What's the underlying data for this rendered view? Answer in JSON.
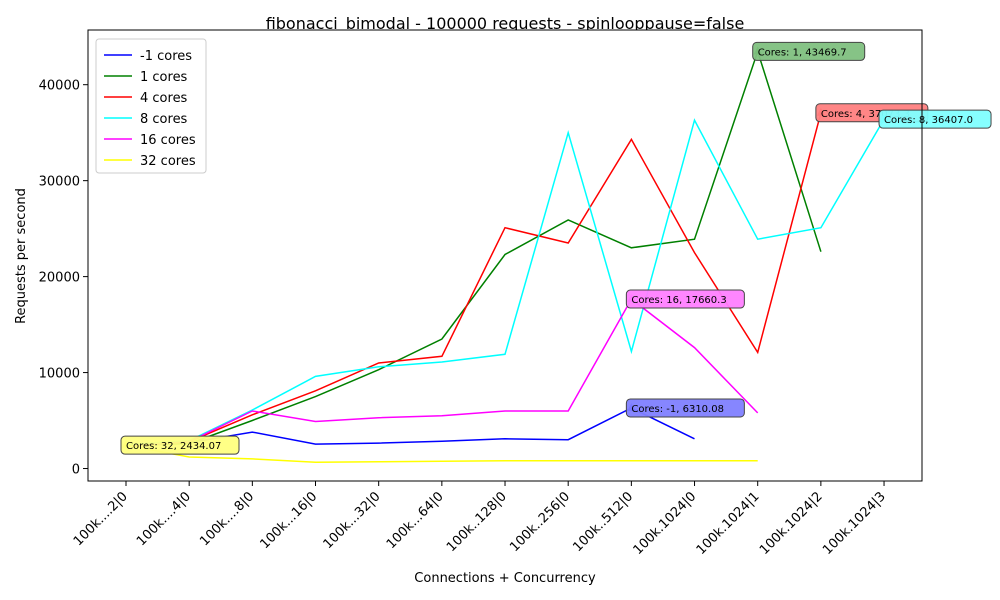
{
  "chart_data": {
    "type": "line",
    "title": "fibonacci_bimodal - 100000 requests - spinlooppause=false",
    "xlabel": "Connections + Concurrency",
    "ylabel": "Requests per second",
    "categories": [
      "100k....2|0",
      "100k....4|0",
      "100k....8|0",
      "100k...16|0",
      "100k...32|0",
      "100k...64|0",
      "100k..128|0",
      "100k..256|0",
      "100k..512|0",
      "100k.1024|0",
      "100k.1024|1",
      "100k.1024|2",
      "100k.1024|3"
    ],
    "ylim": [
      -1300,
      45700
    ],
    "yticks": [
      0,
      10000,
      20000,
      30000,
      40000
    ],
    "grid": false,
    "legend_position": "top-left",
    "series": [
      {
        "name": "-1 cores",
        "color": "#0000ff",
        "values": [
          2500,
          2700,
          3800,
          2550,
          2650,
          2850,
          3100,
          3000,
          6310.08,
          3100,
          null,
          null,
          null
        ]
      },
      {
        "name": "1 cores",
        "color": "#008000",
        "values": [
          2400,
          2600,
          5000,
          7500,
          10300,
          13500,
          22300,
          25900,
          23000,
          23900,
          43469.7,
          22600,
          null
        ]
      },
      {
        "name": "4 cores",
        "color": "#ff0000",
        "values": [
          2500,
          2800,
          5600,
          8100,
          11000,
          11700,
          25100,
          23500,
          34300,
          22500,
          12100,
          37073.3,
          null
        ]
      },
      {
        "name": "8 cores",
        "color": "#00ffff",
        "values": [
          2500,
          2900,
          6100,
          9600,
          10600,
          11100,
          11900,
          35000,
          12200,
          36300,
          23900,
          25100,
          36407.0
        ]
      },
      {
        "name": "16 cores",
        "color": "#ff00ff",
        "values": [
          2300,
          2800,
          6000,
          4900,
          5300,
          5500,
          6000,
          6000,
          17660.3,
          12600,
          5800,
          null,
          null
        ]
      },
      {
        "name": "32 cores",
        "color": "#ffff00",
        "values": [
          2434.07,
          1200,
          1000,
          650,
          700,
          750,
          800,
          800,
          800,
          800,
          800,
          null,
          null
        ]
      }
    ],
    "annotations": [
      {
        "series": "-1 cores",
        "text": "Cores: -1, 6310.08",
        "x_index": 8,
        "y": 6310.08,
        "bg": "#8080ff"
      },
      {
        "series": "1 cores",
        "text": "Cores: 1, 43469.7",
        "x_index": 10,
        "y": 43469.7,
        "bg": "#80c080"
      },
      {
        "series": "4 cores",
        "text": "Cores: 4, 37073.3",
        "x_index": 11,
        "y": 37073.3,
        "bg": "#ff8080"
      },
      {
        "series": "8 cores",
        "text": "Cores: 8, 36407.0",
        "x_index": 12,
        "y": 36407.0,
        "bg": "#80ffff"
      },
      {
        "series": "16 cores",
        "text": "Cores: 16, 17660.3",
        "x_index": 8,
        "y": 17660.3,
        "bg": "#ff80ff"
      },
      {
        "series": "32 cores",
        "text": "Cores: 32, 2434.07",
        "x_index": 0,
        "y": 2434.07,
        "bg": "#ffff80"
      }
    ]
  }
}
